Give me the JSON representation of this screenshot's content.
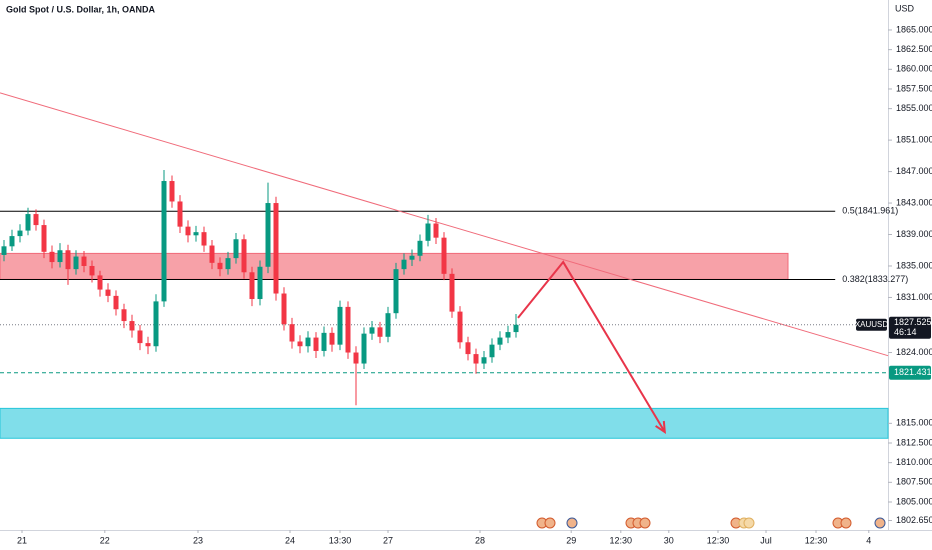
{
  "chart_data": {
    "type": "candlestick",
    "title": "Gold Spot / U.S. Dollar, 1h, OANDA",
    "currency": "USD",
    "up_color": "#089981",
    "down_color": "#f23645",
    "grid": false,
    "xlim": [
      0,
      111
    ],
    "ylim": [
      1801.44,
      1868.81
    ],
    "yticks": [
      {
        "value": 1865,
        "label": "1865.000"
      },
      {
        "value": 1862.5,
        "label": "1862.500"
      },
      {
        "value": 1860,
        "label": "1860.000"
      },
      {
        "value": 1857.5,
        "label": "1857.500"
      },
      {
        "value": 1855,
        "label": "1855.000"
      },
      {
        "value": 1851,
        "label": "1851.000"
      },
      {
        "value": 1847,
        "label": "1847.000"
      },
      {
        "value": 1843,
        "label": "1843.000"
      },
      {
        "value": 1839,
        "label": "1839.000"
      },
      {
        "value": 1835,
        "label": "1835.000"
      },
      {
        "value": 1831,
        "label": "1831.000"
      },
      {
        "value": 1824,
        "label": "1824.000"
      },
      {
        "value": 1815,
        "label": "1815.000"
      },
      {
        "value": 1812.5,
        "label": "1812.500"
      },
      {
        "value": 1810,
        "label": "1810.000"
      },
      {
        "value": 1807.5,
        "label": "1807.500"
      },
      {
        "value": 1805,
        "label": "1805.000"
      },
      {
        "value": 1802.65,
        "label": "1802.650"
      }
    ],
    "xticks": [
      {
        "value": 2.75,
        "label": "21"
      },
      {
        "value": 13.1,
        "label": "22"
      },
      {
        "value": 24.75,
        "label": "23"
      },
      {
        "value": 36.25,
        "label": "24"
      },
      {
        "value": 42.5,
        "label": "13:30"
      },
      {
        "value": 48.5,
        "label": "27"
      },
      {
        "value": 60,
        "label": "28"
      },
      {
        "value": 71.4,
        "label": "29"
      },
      {
        "value": 77.6,
        "label": "12:30"
      },
      {
        "value": 83.6,
        "label": "30"
      },
      {
        "value": 89.75,
        "label": "12:30"
      },
      {
        "value": 95.75,
        "label": "Jul"
      },
      {
        "value": 102,
        "label": "12:30"
      },
      {
        "value": 108.6,
        "label": "4"
      }
    ],
    "x": [
      0.5,
      1.5,
      2.5,
      3.5,
      4.5,
      5.5,
      6.5,
      7.5,
      8.5,
      9.5,
      10.5,
      11.5,
      12.5,
      13.5,
      14.5,
      15.5,
      16.5,
      17.5,
      18.5,
      19.5,
      20.5,
      21.5,
      22.5,
      23.5,
      24.5,
      25.5,
      26.5,
      27.5,
      28.5,
      29.5,
      30.5,
      31.5,
      32.5,
      33.5,
      34.5,
      35.5,
      36.5,
      37.5,
      38.5,
      39.5,
      40.5,
      41.5,
      42.5,
      43.5,
      44.5,
      45.5,
      46.5,
      47.5,
      48.5,
      49.5,
      50.5,
      51.5,
      52.5,
      53.5,
      54.5,
      55.5,
      56.5,
      57.5,
      58.5,
      59.5,
      60.5,
      61.5,
      62.5,
      63.5,
      64.5
    ],
    "open": [
      1836.4,
      1837.5,
      1838.8,
      1839.5,
      1841.6,
      1840.2,
      1836.8,
      1835.5,
      1837.0,
      1834.6,
      1836.2,
      1835.0,
      1833.8,
      1832.0,
      1831.2,
      1829.5,
      1828.0,
      1826.8,
      1825.2,
      1824.8,
      1830.5,
      1845.8,
      1843.2,
      1840.0,
      1838.9,
      1839.3,
      1837.6,
      1835.4,
      1834.6,
      1836.0,
      1838.4,
      1834.2,
      1830.8,
      1834.9,
      1843.0,
      1831.5,
      1827.6,
      1825.4,
      1824.8,
      1825.9,
      1824.2,
      1826.5,
      1825.0,
      1829.8,
      1824.0,
      1822.6,
      1826.4,
      1827.2,
      1826.0,
      1829.0,
      1834.6,
      1835.8,
      1836.3,
      1838.2,
      1840.4,
      1838.6,
      1834.0,
      1829.2,
      1825.3,
      1823.8,
      1822.6,
      1823.4,
      1825.0,
      1825.9,
      1826.6
    ],
    "high": [
      1838.3,
      1839.6,
      1840.3,
      1842.4,
      1842.2,
      1840.9,
      1837.6,
      1837.9,
      1837.7,
      1837.0,
      1836.9,
      1835.7,
      1834.4,
      1832.8,
      1831.9,
      1830.2,
      1828.8,
      1827.5,
      1826.0,
      1831.4,
      1847.2,
      1846.5,
      1844.0,
      1840.8,
      1840.1,
      1840.0,
      1838.3,
      1836.1,
      1836.8,
      1839.2,
      1839.0,
      1834.9,
      1835.7,
      1845.6,
      1843.8,
      1832.3,
      1828.4,
      1826.2,
      1826.7,
      1826.6,
      1827.3,
      1827.2,
      1830.6,
      1830.5,
      1824.8,
      1827.2,
      1828.0,
      1827.9,
      1829.8,
      1835.4,
      1836.6,
      1837.1,
      1839.0,
      1841.5,
      1841.1,
      1839.3,
      1834.7,
      1829.9,
      1826.0,
      1824.5,
      1824.2,
      1825.8,
      1826.7,
      1827.4,
      1828.9
    ],
    "low": [
      1835.6,
      1836.9,
      1838.0,
      1838.9,
      1839.5,
      1836.0,
      1834.7,
      1834.8,
      1832.6,
      1833.9,
      1834.2,
      1832.9,
      1831.1,
      1830.4,
      1828.7,
      1827.1,
      1825.9,
      1824.3,
      1823.8,
      1824.1,
      1829.8,
      1842.4,
      1839.2,
      1838.0,
      1838.1,
      1836.8,
      1834.6,
      1833.7,
      1833.9,
      1835.3,
      1833.4,
      1829.9,
      1830.0,
      1834.1,
      1830.6,
      1826.8,
      1824.5,
      1823.9,
      1824.0,
      1823.3,
      1823.5,
      1824.1,
      1824.3,
      1823.2,
      1817.3,
      1821.9,
      1825.6,
      1825.2,
      1825.3,
      1828.3,
      1833.9,
      1835.0,
      1835.6,
      1837.5,
      1837.8,
      1833.2,
      1828.4,
      1824.5,
      1823.0,
      1821.3,
      1821.9,
      1822.7,
      1824.3,
      1825.2,
      1825.9
    ],
    "close": [
      1837.5,
      1838.8,
      1839.5,
      1841.6,
      1840.2,
      1836.8,
      1835.5,
      1837.0,
      1834.6,
      1836.2,
      1835.0,
      1833.8,
      1832.0,
      1831.2,
      1829.5,
      1828.0,
      1826.8,
      1825.2,
      1824.8,
      1830.5,
      1845.8,
      1843.2,
      1840.0,
      1838.9,
      1839.3,
      1837.6,
      1835.4,
      1834.6,
      1836.0,
      1838.4,
      1834.2,
      1830.8,
      1834.9,
      1843.0,
      1831.5,
      1827.6,
      1825.4,
      1824.8,
      1825.9,
      1824.2,
      1826.5,
      1825.0,
      1829.8,
      1824.0,
      1822.6,
      1826.4,
      1827.2,
      1826.0,
      1829.0,
      1834.6,
      1835.8,
      1836.3,
      1838.2,
      1840.4,
      1838.6,
      1834.0,
      1829.2,
      1825.3,
      1823.8,
      1822.6,
      1823.4,
      1825.0,
      1825.9,
      1826.6,
      1827.525
    ],
    "zones": [
      {
        "low": 1833.3,
        "high": 1836.6,
        "color": "#f7a1a8",
        "x_end": 98.5
      },
      {
        "low": 1813.1,
        "high": 1816.9,
        "color": "#80deea",
        "x_end": 111
      }
    ],
    "levels": [
      {
        "value": 1841.961,
        "label": "0.5(1841.961)",
        "color": "#000000",
        "x_end": 104.4
      },
      {
        "value": 1833.277,
        "label": "0.382(1833.277)",
        "color": "#000000",
        "x_end": 104.4
      }
    ],
    "support": {
      "value": 1821.431,
      "color": "#089981"
    },
    "trendline": {
      "x": [
        0,
        111
      ],
      "y": [
        1857.0,
        1823.6
      ],
      "color": "#f06b7a"
    },
    "arrow": {
      "x": [
        64.75,
        70.4,
        83.1
      ],
      "y": [
        1828.4,
        1835.5,
        1813.9
      ],
      "color": "#e8354a"
    },
    "last_price": {
      "symbol": "XAUUSD",
      "value": 1827.525,
      "timer": "46:14"
    }
  }
}
